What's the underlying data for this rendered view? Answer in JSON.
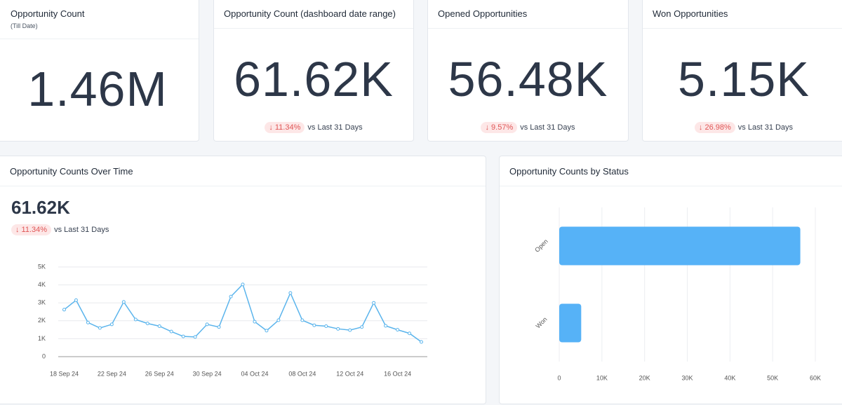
{
  "kpis": [
    {
      "title": "Opportunity Count",
      "subtitle": "(Till Date)",
      "value": "1.46M"
    },
    {
      "title": "Opportunity Count (dashboard date range)",
      "value": "61.62K",
      "change": "↓ 11.34%",
      "comparison": "vs Last 31 Days"
    },
    {
      "title": "Opened Opportunities",
      "value": "56.48K",
      "change": "↓ 9.57%",
      "comparison": "vs Last 31 Days"
    },
    {
      "title": "Won Opportunities",
      "value": "5.15K",
      "change": "↓ 26.98%",
      "comparison": "vs Last 31 Days"
    }
  ],
  "panels": [
    {
      "title": "Opportunity Counts Over Time",
      "value": "61.62K",
      "change": "↓ 11.34%",
      "comparison": "vs Last 31 Days"
    },
    {
      "title": "Opportunity Counts by Status"
    }
  ],
  "chart_data": [
    {
      "type": "line",
      "color": "#5ab4ec",
      "categories": [
        "18 Sep 24",
        null,
        null,
        null,
        "22 Sep 24",
        null,
        null,
        null,
        "26 Sep 24",
        null,
        null,
        null,
        "30 Sep 24",
        null,
        null,
        null,
        "04 Oct 24",
        null,
        null,
        null,
        "08 Oct 24",
        null,
        null,
        null,
        "12 Oct 24",
        null,
        null,
        null,
        "16 Oct 24",
        null,
        null
      ],
      "values": [
        2620,
        3150,
        1900,
        1600,
        1800,
        3050,
        2070,
        1850,
        1700,
        1400,
        1130,
        1100,
        1800,
        1650,
        3350,
        4030,
        1950,
        1450,
        2030,
        3550,
        2030,
        1750,
        1700,
        1550,
        1480,
        1650,
        3000,
        1720,
        1500,
        1300,
        820
      ],
      "ylim": [
        0,
        5000
      ],
      "yticks": [
        0,
        {
          "value": 1000,
          "label": "1K"
        },
        {
          "value": 2000,
          "label": "2K"
        },
        {
          "value": 3000,
          "label": "3K"
        },
        {
          "value": 4000,
          "label": "4K"
        },
        {
          "value": 5000,
          "label": "5K"
        }
      ],
      "grid": true
    },
    {
      "type": "hbar",
      "color": "#56b2f7",
      "categories": [
        "Open",
        "Won"
      ],
      "values": [
        56480,
        5150
      ],
      "xlim": [
        0,
        60000
      ],
      "xticks": [
        0,
        {
          "value": 10000,
          "label": "10K"
        },
        {
          "value": 20000,
          "label": "20K"
        },
        {
          "value": 30000,
          "label": "30K"
        },
        {
          "value": 40000,
          "label": "40K"
        },
        {
          "value": 50000,
          "label": "50K"
        },
        {
          "value": 60000,
          "label": "60K"
        }
      ],
      "grid": true
    }
  ]
}
